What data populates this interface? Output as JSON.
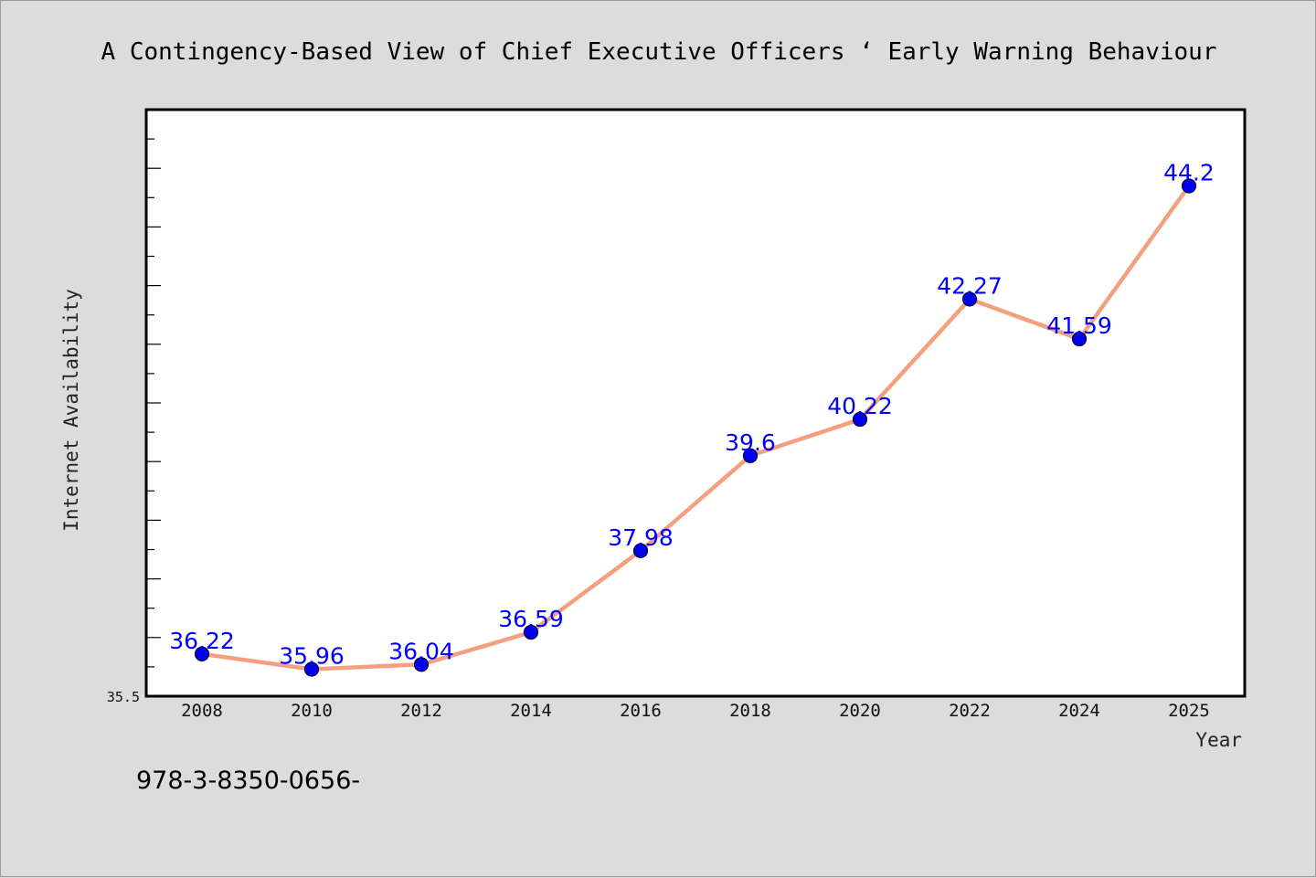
{
  "chart_data": {
    "type": "line",
    "title": "A Contingency-Based View of Chief Executive Officers ‘ Early Warning Behaviour",
    "xlabel": "Year",
    "ylabel": "Internet Availability",
    "categories": [
      "2008",
      "2010",
      "2012",
      "2014",
      "2016",
      "2018",
      "2020",
      "2022",
      "2024",
      "2025"
    ],
    "values": [
      36.22,
      35.96,
      36.04,
      36.59,
      37.98,
      39.6,
      40.22,
      42.27,
      41.59,
      44.2
    ],
    "data_labels": [
      "36.22",
      "35.96",
      "36.04",
      "36.59",
      "37.98",
      "39.6",
      "40.22",
      "42.27",
      "41.59",
      "44.2"
    ],
    "ylim": [
      35.5,
      45.5
    ],
    "ytick_label": "35.5",
    "line_color": "#f4a07e",
    "marker_color": "#0000ee",
    "label_color": "#0000ff",
    "grid": false,
    "legend": "none"
  },
  "footer": {
    "isbn": "978-3-8350-0656-"
  }
}
